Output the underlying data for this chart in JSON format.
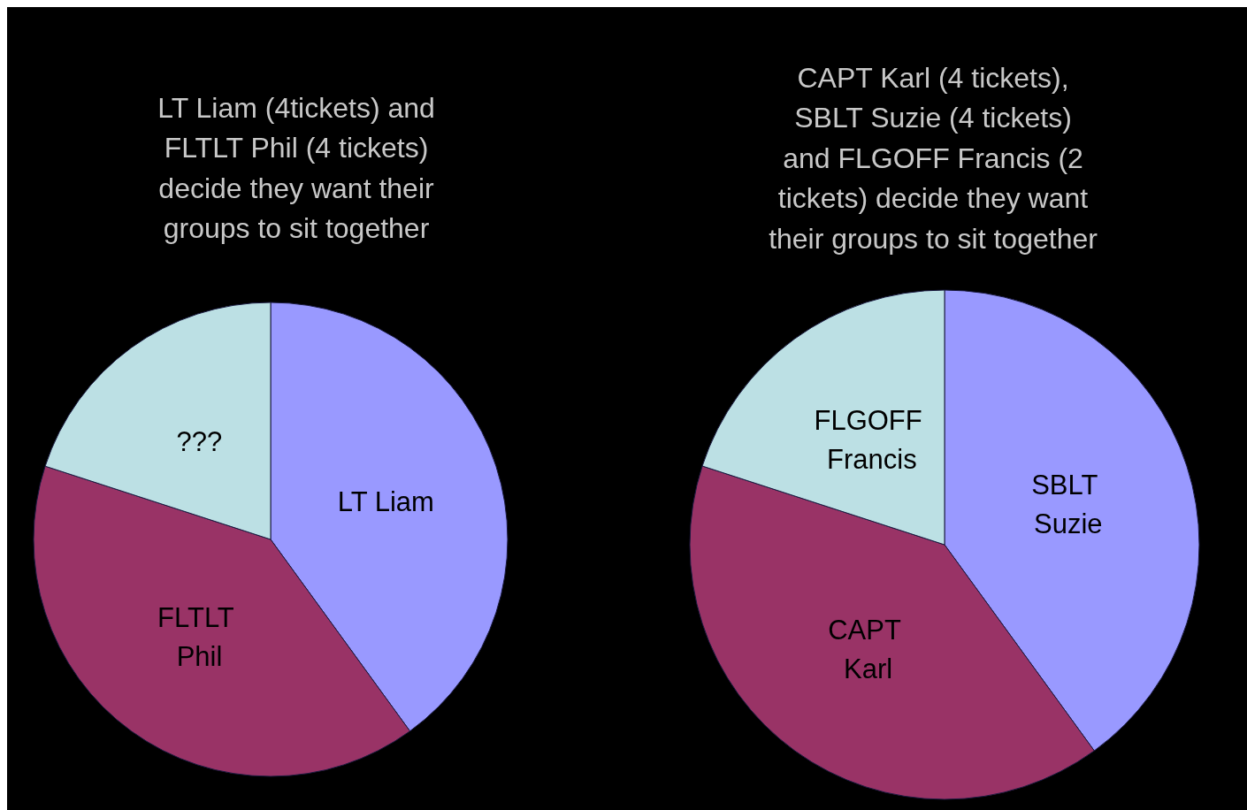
{
  "chart_data": [
    {
      "type": "pie",
      "title": "LT Liam (4tickets) and\nFLTLT Phil (4 tickets)\ndecide they want their\ngroups to sit together",
      "categories": [
        "LT Liam",
        "FLTLT Phil",
        "???"
      ],
      "values": [
        40,
        40,
        20
      ],
      "colors": [
        "#9999ff",
        "#993366",
        "#bce0e4"
      ]
    },
    {
      "type": "pie",
      "title": "CAPT Karl (4 tickets),\nSBLT Suzie (4 tickets)\nand FLGOFF Francis (2\ntickets) decide they want\ntheir groups to sit together",
      "categories": [
        "SBLT Suzie",
        "CAPT Karl",
        "FLGOFF Francis"
      ],
      "values": [
        40,
        40,
        20
      ],
      "colors": [
        "#9999ff",
        "#993366",
        "#bce0e4"
      ]
    }
  ]
}
